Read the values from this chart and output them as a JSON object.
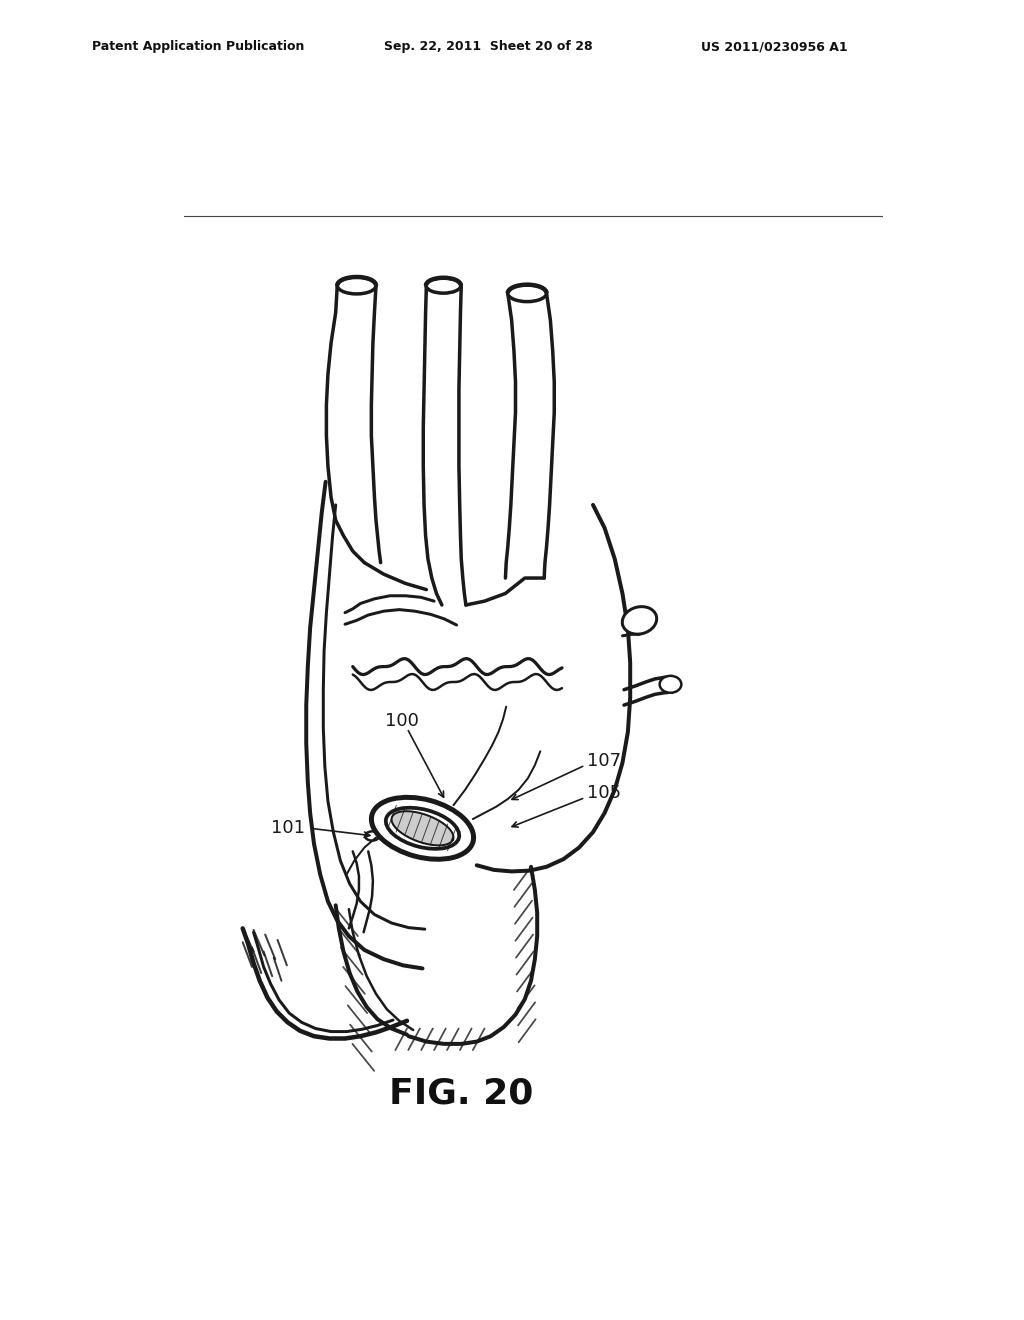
{
  "background_color": "#ffffff",
  "header_left": "Patent Application Publication",
  "header_mid": "Sep. 22, 2011  Sheet 20 of 28",
  "header_right": "US 2011/0230956 A1",
  "fig_label": "FIG. 20",
  "line_color": "#1a1a1a",
  "line_width": 1.8
}
